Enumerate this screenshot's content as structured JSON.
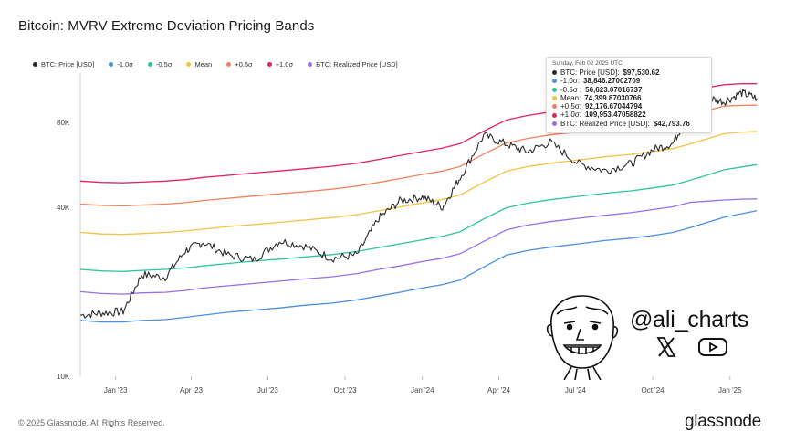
{
  "title": "Bitcoin: MVRV Extreme Deviation Pricing Bands",
  "footer": "© 2025 Glassnode. All Rights Reserved.",
  "brand": "glassnode",
  "watermark": {
    "handle": "@ali_charts",
    "icons": [
      "x-logo-icon",
      "youtube-icon",
      "cartoon-face-icon"
    ]
  },
  "colors": {
    "price": "#2b2b2b",
    "m1": "#4a90e2",
    "m05": "#2ec4a0",
    "mean": "#f5c242",
    "p05": "#f0825a",
    "p1": "#e0245e",
    "realized": "#9b6ee8"
  },
  "tooltip": {
    "date": "Sunday, Feb 02 2025 UTC",
    "rows": [
      {
        "color": "#2b2b2b",
        "label": "BTC: Price [USD]:",
        "value": "$97,530.62"
      },
      {
        "color": "#4a90e2",
        "label": "-1.0σ:",
        "value": "38,846.27002709"
      },
      {
        "color": "#2ec4a0",
        "label": "-0.5σ :",
        "value": "56,623.07016737"
      },
      {
        "color": "#f5c242",
        "label": "Mean:",
        "value": "74,399.87030766"
      },
      {
        "color": "#f0825a",
        "label": "+0.5σ:",
        "value": "92,176.67044794"
      },
      {
        "color": "#e0245e",
        "label": "+1.0σ:",
        "value": "109,953.47058822"
      },
      {
        "color": "#9b6ee8",
        "label": "BTC: Realized Price [USD]:",
        "value": "$42,793.76"
      }
    ]
  },
  "chart_data": {
    "type": "line",
    "title": "Bitcoin: MVRV Extreme Deviation Pricing Bands",
    "yscale": "log",
    "ylim": [
      10000,
      120000
    ],
    "yticks": [
      10000,
      40000,
      80000
    ],
    "ytick_labels": [
      "10K",
      "40K",
      "80K"
    ],
    "xlim": [
      "2022-11-20",
      "2025-02-05"
    ],
    "xticks": [
      "2023-01-01",
      "2023-04-01",
      "2023-07-01",
      "2023-10-01",
      "2024-01-01",
      "2024-04-01",
      "2024-07-01",
      "2024-10-01",
      "2025-01-01"
    ],
    "xtick_labels": [
      "Jan '23",
      "Apr '23",
      "Jul '23",
      "Oct '23",
      "Jan '24",
      "Apr '24",
      "Jul '24",
      "Oct '24",
      "Jan '25"
    ],
    "legend_position": "top-left",
    "grid": false,
    "x": [
      "2022-11-20",
      "2022-12-15",
      "2023-01-10",
      "2023-02-01",
      "2023-03-01",
      "2023-03-25",
      "2023-04-15",
      "2023-05-15",
      "2023-06-15",
      "2023-07-15",
      "2023-08-15",
      "2023-09-15",
      "2023-10-15",
      "2023-11-10",
      "2023-12-05",
      "2024-01-01",
      "2024-01-25",
      "2024-02-15",
      "2024-03-14",
      "2024-04-10",
      "2024-05-05",
      "2024-06-01",
      "2024-07-05",
      "2024-08-05",
      "2024-09-05",
      "2024-10-01",
      "2024-10-25",
      "2024-11-15",
      "2024-12-05",
      "2024-12-25",
      "2025-01-15",
      "2025-02-02"
    ],
    "series": [
      {
        "name": "BTC: Price [USD]",
        "color": "#2b2b2b",
        "values": [
          16500,
          16800,
          17000,
          23000,
          22500,
          28000,
          30000,
          27000,
          26000,
          30300,
          29000,
          26300,
          27000,
          36500,
          42000,
          43500,
          40000,
          51000,
          72000,
          67000,
          63000,
          68000,
          57000,
          54000,
          57000,
          64000,
          67500,
          88000,
          98000,
          95000,
          102000,
          97530
        ]
      },
      {
        "name": "-1.0σ",
        "color": "#4a90e2",
        "values": [
          15800,
          15600,
          15600,
          15800,
          15900,
          16200,
          16500,
          16900,
          17200,
          17500,
          17900,
          18200,
          18700,
          19300,
          19900,
          20600,
          21200,
          22000,
          24500,
          27000,
          28000,
          28800,
          29600,
          30400,
          31000,
          31700,
          32500,
          33800,
          35300,
          36800,
          37900,
          38846
        ]
      },
      {
        "name": "-0.5σ",
        "color": "#2ec4a0",
        "values": [
          24000,
          23700,
          23600,
          23800,
          24000,
          24300,
          24700,
          25200,
          25700,
          26100,
          26600,
          27100,
          27800,
          28700,
          29600,
          30600,
          31500,
          32700,
          36300,
          39800,
          41300,
          42500,
          43700,
          44800,
          45700,
          46800,
          47900,
          49900,
          52000,
          54300,
          55600,
          56623
        ]
      },
      {
        "name": "Mean",
        "color": "#f5c242",
        "values": [
          32500,
          32100,
          32000,
          32200,
          32500,
          32900,
          33400,
          34100,
          34700,
          35300,
          36000,
          36700,
          37600,
          38800,
          40000,
          41400,
          42600,
          44200,
          49000,
          53700,
          55700,
          57300,
          58900,
          60400,
          61600,
          63100,
          64600,
          67200,
          70000,
          73000,
          74000,
          74400
        ]
      },
      {
        "name": "+0.5σ",
        "color": "#f0825a",
        "values": [
          41000,
          40600,
          40400,
          40700,
          41000,
          41500,
          42200,
          43000,
          43800,
          44600,
          45400,
          46300,
          47500,
          49000,
          50500,
          52300,
          53800,
          55800,
          61800,
          67700,
          70200,
          72300,
          74200,
          76100,
          77600,
          79500,
          81400,
          84700,
          88300,
          91500,
          92100,
          92177
        ]
      },
      {
        "name": "+1.0σ",
        "color": "#e0245e",
        "values": [
          49500,
          49000,
          48800,
          49100,
          49500,
          50100,
          51000,
          51900,
          52900,
          53800,
          54800,
          55900,
          57300,
          59100,
          61000,
          63100,
          64900,
          67300,
          74600,
          81700,
          84700,
          87200,
          89500,
          91800,
          93600,
          95900,
          98200,
          102100,
          106500,
          109000,
          110000,
          109953
        ]
      },
      {
        "name": "BTC: Realized Price [USD]",
        "color": "#9b6ee8",
        "values": [
          20000,
          19700,
          19600,
          19800,
          19900,
          20200,
          20600,
          21000,
          21400,
          21800,
          22200,
          22600,
          23200,
          24000,
          24700,
          25600,
          26300,
          27300,
          30200,
          33200,
          34500,
          35500,
          36500,
          37400,
          38200,
          39200,
          40100,
          41600,
          42000,
          42400,
          42700,
          42794
        ]
      }
    ]
  }
}
